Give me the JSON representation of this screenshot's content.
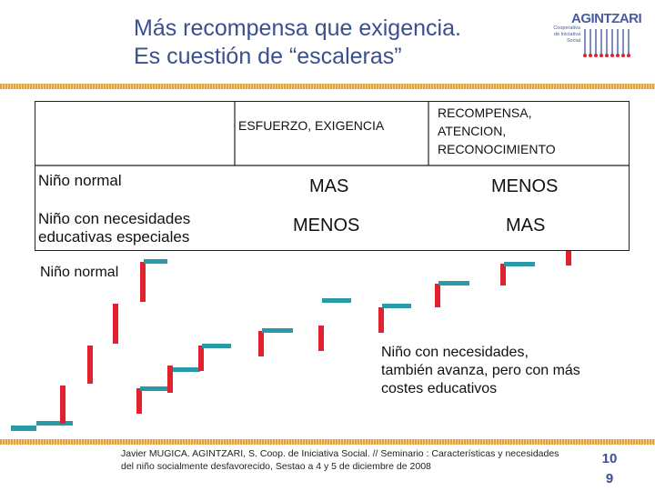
{
  "title": {
    "line1": "Más recompensa que exigencia.",
    "line2": "Es cuestión de “escaleras”"
  },
  "logo": {
    "name": "AGINTZARI",
    "subtitle": "Cooperativa de Iniciativa Social"
  },
  "table": {
    "col_headers": [
      "ESFUERZO, EXIGENCIA",
      "RECOMPENSA, ATENCION, RECONOCIMIENTO"
    ],
    "rows": [
      {
        "label": "Niño normal",
        "values": [
          "MAS",
          "MENOS"
        ]
      },
      {
        "label": "Niño con necesidades educativas especiales",
        "values": [
          "MENOS",
          "MAS"
        ]
      }
    ]
  },
  "diagram": {
    "label_normal": "Niño normal",
    "label_special": "Niño con necesidades, también avanza, pero con más costes educativos"
  },
  "footer": {
    "citation": "Javier MUGICA. AGINTZARI, S. Coop. de Iniciativa Social. // Seminario : Características y necesidades del niño socialmente desfavorecido, Sestao a 4 y 5 de diciembre de 2008",
    "page_line1": "10",
    "page_line2": "9"
  },
  "colors": {
    "title": "#3a4f8f",
    "step": "#2a9aa8",
    "riser": "#e0212e",
    "rule": "#e2a13a"
  }
}
